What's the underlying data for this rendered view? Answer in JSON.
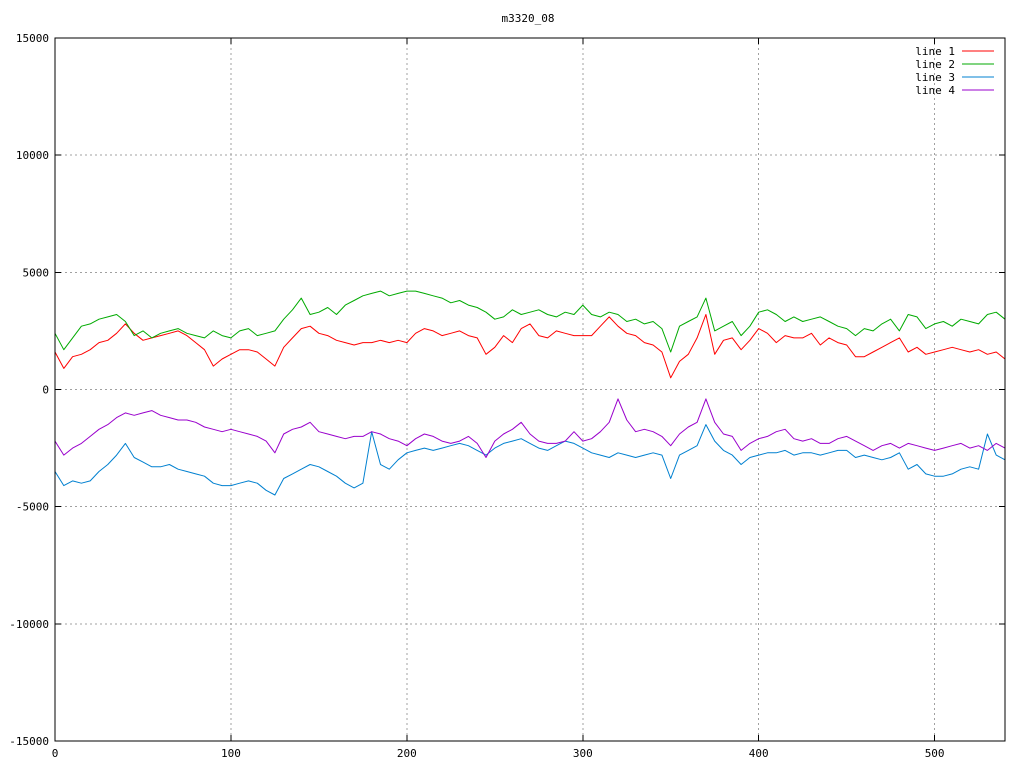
{
  "chart_data": {
    "type": "line",
    "title": "m3320_08",
    "xlabel": "",
    "ylabel": "",
    "xlim": [
      0,
      540
    ],
    "ylim": [
      -15000,
      15000
    ],
    "x_ticks": [
      0,
      100,
      200,
      300,
      400,
      500
    ],
    "y_ticks": [
      -15000,
      -10000,
      -5000,
      0,
      5000,
      10000,
      15000
    ],
    "grid": true,
    "legend_position": "top-right",
    "series": [
      {
        "name": "line 1",
        "color": "#ff0000",
        "x": [
          0,
          5,
          10,
          15,
          20,
          25,
          30,
          35,
          40,
          45,
          50,
          55,
          60,
          65,
          70,
          75,
          80,
          85,
          90,
          95,
          100,
          105,
          110,
          115,
          120,
          125,
          130,
          135,
          140,
          145,
          150,
          155,
          160,
          165,
          170,
          175,
          180,
          185,
          190,
          195,
          200,
          205,
          210,
          215,
          220,
          225,
          230,
          235,
          240,
          245,
          250,
          255,
          260,
          265,
          270,
          275,
          280,
          285,
          290,
          295,
          300,
          305,
          310,
          315,
          320,
          325,
          330,
          335,
          340,
          345,
          350,
          355,
          360,
          365,
          370,
          375,
          380,
          385,
          390,
          395,
          400,
          405,
          410,
          415,
          420,
          425,
          430,
          435,
          440,
          445,
          450,
          455,
          460,
          465,
          470,
          475,
          480,
          485,
          490,
          495,
          500,
          505,
          510,
          515,
          520,
          525,
          530,
          535,
          540
        ],
        "values": [
          1600,
          900,
          1400,
          1500,
          1700,
          2000,
          2100,
          2400,
          2800,
          2400,
          2100,
          2200,
          2300,
          2400,
          2500,
          2300,
          2000,
          1700,
          1000,
          1300,
          1500,
          1700,
          1700,
          1600,
          1300,
          1000,
          1800,
          2200,
          2600,
          2700,
          2400,
          2300,
          2100,
          2000,
          1900,
          2000,
          2000,
          2100,
          2000,
          2100,
          2000,
          2400,
          2600,
          2500,
          2300,
          2400,
          2500,
          2300,
          2200,
          1500,
          1800,
          2300,
          2000,
          2600,
          2800,
          2300,
          2200,
          2500,
          2400,
          2300,
          2300,
          2300,
          2700,
          3100,
          2700,
          2400,
          2300,
          2000,
          1900,
          1600,
          500,
          1200,
          1500,
          2200,
          3200,
          1500,
          2100,
          2200,
          1700,
          2100,
          2600,
          2400,
          2000,
          2300,
          2200,
          2200,
          2400,
          1900,
          2200,
          2000,
          1900,
          1400,
          1400,
          1600,
          1800,
          2000,
          2200,
          1600,
          1800,
          1500,
          1600,
          1700,
          1800,
          1700,
          1600,
          1700,
          1500,
          1600,
          1300
        ]
      },
      {
        "name": "line 2",
        "color": "#00aa00",
        "x": [
          0,
          5,
          10,
          15,
          20,
          25,
          30,
          35,
          40,
          45,
          50,
          55,
          60,
          65,
          70,
          75,
          80,
          85,
          90,
          95,
          100,
          105,
          110,
          115,
          120,
          125,
          130,
          135,
          140,
          145,
          150,
          155,
          160,
          165,
          170,
          175,
          180,
          185,
          190,
          195,
          200,
          205,
          210,
          215,
          220,
          225,
          230,
          235,
          240,
          245,
          250,
          255,
          260,
          265,
          270,
          275,
          280,
          285,
          290,
          295,
          300,
          305,
          310,
          315,
          320,
          325,
          330,
          335,
          340,
          345,
          350,
          355,
          360,
          365,
          370,
          375,
          380,
          385,
          390,
          395,
          400,
          405,
          410,
          415,
          420,
          425,
          430,
          435,
          440,
          445,
          450,
          455,
          460,
          465,
          470,
          475,
          480,
          485,
          490,
          495,
          500,
          505,
          510,
          515,
          520,
          525,
          530,
          535,
          540
        ],
        "values": [
          2400,
          1700,
          2200,
          2700,
          2800,
          3000,
          3100,
          3200,
          2900,
          2300,
          2500,
          2200,
          2400,
          2500,
          2600,
          2400,
          2300,
          2200,
          2500,
          2300,
          2200,
          2500,
          2600,
          2300,
          2400,
          2500,
          3000,
          3400,
          3900,
          3200,
          3300,
          3500,
          3200,
          3600,
          3800,
          4000,
          4100,
          4200,
          4000,
          4100,
          4200,
          4200,
          4100,
          4000,
          3900,
          3700,
          3800,
          3600,
          3500,
          3300,
          3000,
          3100,
          3400,
          3200,
          3300,
          3400,
          3200,
          3100,
          3300,
          3200,
          3600,
          3200,
          3100,
          3300,
          3200,
          2900,
          3000,
          2800,
          2900,
          2600,
          1600,
          2700,
          2900,
          3100,
          3900,
          2500,
          2700,
          2900,
          2300,
          2700,
          3300,
          3400,
          3200,
          2900,
          3100,
          2900,
          3000,
          3100,
          2900,
          2700,
          2600,
          2300,
          2600,
          2500,
          2800,
          3000,
          2500,
          3200,
          3100,
          2600,
          2800,
          2900,
          2700,
          3000,
          2900,
          2800,
          3200,
          3300,
          3000
        ]
      },
      {
        "name": "line 3",
        "color": "#0080d0",
        "x": [
          0,
          5,
          10,
          15,
          20,
          25,
          30,
          35,
          40,
          45,
          50,
          55,
          60,
          65,
          70,
          75,
          80,
          85,
          90,
          95,
          100,
          105,
          110,
          115,
          120,
          125,
          130,
          135,
          140,
          145,
          150,
          155,
          160,
          165,
          170,
          175,
          180,
          185,
          190,
          195,
          200,
          205,
          210,
          215,
          220,
          225,
          230,
          235,
          240,
          245,
          250,
          255,
          260,
          265,
          270,
          275,
          280,
          285,
          290,
          295,
          300,
          305,
          310,
          315,
          320,
          325,
          330,
          335,
          340,
          345,
          350,
          355,
          360,
          365,
          370,
          375,
          380,
          385,
          390,
          395,
          400,
          405,
          410,
          415,
          420,
          425,
          430,
          435,
          440,
          445,
          450,
          455,
          460,
          465,
          470,
          475,
          480,
          485,
          490,
          495,
          500,
          505,
          510,
          515,
          520,
          525,
          530,
          535,
          540
        ],
        "values": [
          -3500,
          -4100,
          -3900,
          -4000,
          -3900,
          -3500,
          -3200,
          -2800,
          -2300,
          -2900,
          -3100,
          -3300,
          -3300,
          -3200,
          -3400,
          -3500,
          -3600,
          -3700,
          -4000,
          -4100,
          -4100,
          -4000,
          -3900,
          -4000,
          -4300,
          -4500,
          -3800,
          -3600,
          -3400,
          -3200,
          -3300,
          -3500,
          -3700,
          -4000,
          -4200,
          -4000,
          -1800,
          -3200,
          -3400,
          -3000,
          -2700,
          -2600,
          -2500,
          -2600,
          -2500,
          -2400,
          -2300,
          -2400,
          -2600,
          -2800,
          -2500,
          -2300,
          -2200,
          -2100,
          -2300,
          -2500,
          -2600,
          -2400,
          -2200,
          -2300,
          -2500,
          -2700,
          -2800,
          -2900,
          -2700,
          -2800,
          -2900,
          -2800,
          -2700,
          -2800,
          -3800,
          -2800,
          -2600,
          -2400,
          -1500,
          -2200,
          -2600,
          -2800,
          -3200,
          -2900,
          -2800,
          -2700,
          -2700,
          -2600,
          -2800,
          -2700,
          -2700,
          -2800,
          -2700,
          -2600,
          -2600,
          -2900,
          -2800,
          -2900,
          -3000,
          -2900,
          -2700,
          -3400,
          -3200,
          -3600,
          -3700,
          -3700,
          -3600,
          -3400,
          -3300,
          -3400,
          -1900,
          -2800,
          -3000
        ]
      },
      {
        "name": "line 4",
        "color": "#9900cc",
        "x": [
          0,
          5,
          10,
          15,
          20,
          25,
          30,
          35,
          40,
          45,
          50,
          55,
          60,
          65,
          70,
          75,
          80,
          85,
          90,
          95,
          100,
          105,
          110,
          115,
          120,
          125,
          130,
          135,
          140,
          145,
          150,
          155,
          160,
          165,
          170,
          175,
          180,
          185,
          190,
          195,
          200,
          205,
          210,
          215,
          220,
          225,
          230,
          235,
          240,
          245,
          250,
          255,
          260,
          265,
          270,
          275,
          280,
          285,
          290,
          295,
          300,
          305,
          310,
          315,
          320,
          325,
          330,
          335,
          340,
          345,
          350,
          355,
          360,
          365,
          370,
          375,
          380,
          385,
          390,
          395,
          400,
          405,
          410,
          415,
          420,
          425,
          430,
          435,
          440,
          445,
          450,
          455,
          460,
          465,
          470,
          475,
          480,
          485,
          490,
          495,
          500,
          505,
          510,
          515,
          520,
          525,
          530,
          535,
          540
        ],
        "values": [
          -2200,
          -2800,
          -2500,
          -2300,
          -2000,
          -1700,
          -1500,
          -1200,
          -1000,
          -1100,
          -1000,
          -900,
          -1100,
          -1200,
          -1300,
          -1300,
          -1400,
          -1600,
          -1700,
          -1800,
          -1700,
          -1800,
          -1900,
          -2000,
          -2200,
          -2700,
          -1900,
          -1700,
          -1600,
          -1400,
          -1800,
          -1900,
          -2000,
          -2100,
          -2000,
          -2000,
          -1800,
          -1900,
          -2100,
          -2200,
          -2400,
          -2100,
          -1900,
          -2000,
          -2200,
          -2300,
          -2200,
          -2000,
          -2300,
          -2900,
          -2200,
          -1900,
          -1700,
          -1400,
          -1900,
          -2200,
          -2300,
          -2300,
          -2200,
          -1800,
          -2200,
          -2100,
          -1800,
          -1400,
          -400,
          -1300,
          -1800,
          -1700,
          -1800,
          -2000,
          -2400,
          -1900,
          -1600,
          -1400,
          -400,
          -1400,
          -1900,
          -2000,
          -2600,
          -2300,
          -2100,
          -2000,
          -1800,
          -1700,
          -2100,
          -2200,
          -2100,
          -2300,
          -2300,
          -2100,
          -2000,
          -2200,
          -2400,
          -2600,
          -2400,
          -2300,
          -2500,
          -2300,
          -2400,
          -2500,
          -2600,
          -2500,
          -2400,
          -2300,
          -2500,
          -2400,
          -2600,
          -2300,
          -2500
        ]
      }
    ]
  }
}
